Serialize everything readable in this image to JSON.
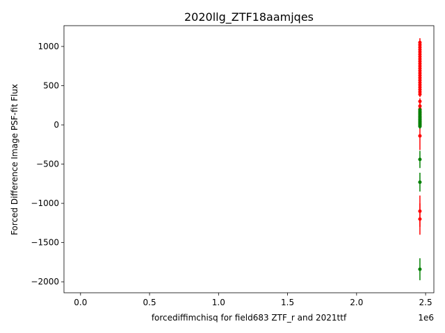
{
  "chart_data": {
    "type": "scatter",
    "title": "2020llg_ZTF18aamjqes",
    "xlabel": "forcediffimchisq for field683 ZTF_r and 2021ttf",
    "ylabel": "Forced Difference Image PSF-fit Flux",
    "x_offset_label": "1e6",
    "xlim": [
      -120000,
      2560000
    ],
    "ylim": [
      -2140,
      1265
    ],
    "xticks": [
      0,
      500000,
      1000000,
      1500000,
      2000000,
      2500000
    ],
    "xtick_labels": [
      "0.0",
      "0.5",
      "1.0",
      "1.5",
      "2.0",
      "2.5"
    ],
    "yticks": [
      -2000,
      -1500,
      -1000,
      -500,
      0,
      500,
      1000
    ],
    "ytick_labels": [
      "−2000",
      "−1500",
      "−1000",
      "−500",
      "0",
      "500",
      "1000"
    ],
    "series": [
      {
        "color": "#ff0000",
        "points": [
          {
            "x": 2458900,
            "y": 1050,
            "err": 55
          },
          {
            "x": 2458905,
            "y": 1020,
            "err": 50
          },
          {
            "x": 2458910,
            "y": 990,
            "err": 50
          },
          {
            "x": 2458915,
            "y": 960,
            "err": 45
          },
          {
            "x": 2458920,
            "y": 930,
            "err": 45
          },
          {
            "x": 2458925,
            "y": 900,
            "err": 45
          },
          {
            "x": 2458930,
            "y": 870,
            "err": 45
          },
          {
            "x": 2458935,
            "y": 840,
            "err": 40
          },
          {
            "x": 2458940,
            "y": 810,
            "err": 40
          },
          {
            "x": 2458945,
            "y": 780,
            "err": 40
          },
          {
            "x": 2458950,
            "y": 750,
            "err": 40
          },
          {
            "x": 2458955,
            "y": 720,
            "err": 35
          },
          {
            "x": 2458960,
            "y": 690,
            "err": 35
          },
          {
            "x": 2458965,
            "y": 660,
            "err": 35
          },
          {
            "x": 2458970,
            "y": 630,
            "err": 35
          },
          {
            "x": 2458975,
            "y": 600,
            "err": 35
          },
          {
            "x": 2458980,
            "y": 570,
            "err": 35
          },
          {
            "x": 2458985,
            "y": 540,
            "err": 35
          },
          {
            "x": 2458990,
            "y": 510,
            "err": 35
          },
          {
            "x": 2458995,
            "y": 480,
            "err": 35
          },
          {
            "x": 2459000,
            "y": 450,
            "err": 35
          },
          {
            "x": 2459005,
            "y": 420,
            "err": 35
          },
          {
            "x": 2459010,
            "y": 390,
            "err": 35
          },
          {
            "x": 2459015,
            "y": 300,
            "err": 40
          },
          {
            "x": 2459020,
            "y": 240,
            "err": 40
          },
          {
            "x": 2459025,
            "y": 200,
            "err": 40
          },
          {
            "x": 2459030,
            "y": 160,
            "err": 40
          },
          {
            "x": 2459035,
            "y": 130,
            "err": 40
          },
          {
            "x": 2459040,
            "y": 100,
            "err": 40
          },
          {
            "x": 2459045,
            "y": 70,
            "err": 40
          },
          {
            "x": 2459050,
            "y": 40,
            "err": 40
          },
          {
            "x": 2459055,
            "y": 10,
            "err": 40
          },
          {
            "x": 2458880,
            "y": -140,
            "err": 180
          },
          {
            "x": 2458870,
            "y": -1100,
            "err": 200
          },
          {
            "x": 2458860,
            "y": -1200,
            "err": 200
          }
        ]
      },
      {
        "color": "#008000",
        "points": [
          {
            "x": 2459000,
            "y": 190,
            "err": 30
          },
          {
            "x": 2459005,
            "y": 170,
            "err": 30
          },
          {
            "x": 2459010,
            "y": 150,
            "err": 30
          },
          {
            "x": 2459015,
            "y": 130,
            "err": 30
          },
          {
            "x": 2459020,
            "y": 110,
            "err": 30
          },
          {
            "x": 2459025,
            "y": 95,
            "err": 30
          },
          {
            "x": 2459030,
            "y": 80,
            "err": 30
          },
          {
            "x": 2459035,
            "y": 65,
            "err": 30
          },
          {
            "x": 2459040,
            "y": 50,
            "err": 30
          },
          {
            "x": 2459045,
            "y": 35,
            "err": 30
          },
          {
            "x": 2459050,
            "y": 20,
            "err": 30
          },
          {
            "x": 2459055,
            "y": 5,
            "err": 30
          },
          {
            "x": 2459060,
            "y": -10,
            "err": 30
          },
          {
            "x": 2459065,
            "y": -20,
            "err": 30
          },
          {
            "x": 2458890,
            "y": -440,
            "err": 110
          },
          {
            "x": 2458885,
            "y": -730,
            "err": 120
          },
          {
            "x": 2458875,
            "y": -1840,
            "err": 140
          }
        ]
      }
    ],
    "grid": false,
    "legend": "none"
  }
}
